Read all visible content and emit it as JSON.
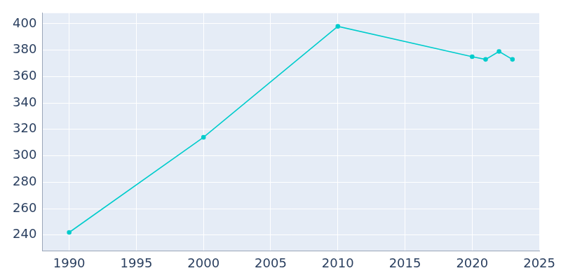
{
  "chart_data": {
    "type": "line",
    "x": [
      1990,
      2000,
      2010,
      2020,
      2021,
      2022,
      2023
    ],
    "values": [
      242,
      314,
      398,
      375,
      373,
      379,
      373
    ],
    "color": "#00cccc",
    "marker": "circle",
    "xlim": [
      1988,
      2025
    ],
    "xticks": [
      1990,
      1995,
      2000,
      2005,
      2010,
      2015,
      2020,
      2025
    ],
    "ylim": [
      228,
      408
    ],
    "yticks": [
      240,
      260,
      280,
      300,
      320,
      340,
      360,
      380,
      400
    ],
    "grid": true
  }
}
